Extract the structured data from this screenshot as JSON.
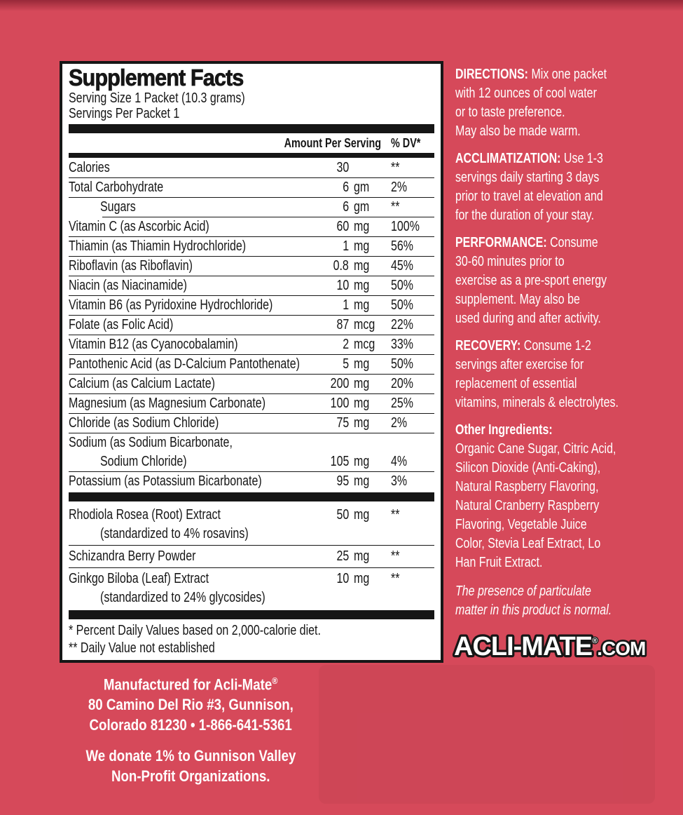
{
  "colors": {
    "background": "#d6495a",
    "label_background": "#ffffff",
    "label_ink": "#161616",
    "text_white": "#ffffff"
  },
  "panel": {
    "title": "Supplement Facts",
    "serving_size": "Serving Size 1 Packet (10.3 grams)",
    "servings_per": "Servings Per Packet 1",
    "col_amount": "Amount Per Serving",
    "col_dv": "% DV*",
    "rows": [
      {
        "name": "Calories",
        "amount": "30",
        "unit": "",
        "dv": "**"
      },
      {
        "name": "Total Carbohydrate",
        "amount": "6",
        "unit": "gm",
        "dv": "2%"
      },
      {
        "name": "Sugars",
        "indent": true,
        "amount": "6",
        "unit": "gm",
        "dv": "**"
      },
      {
        "name": "Vitamin C (as Ascorbic Acid)",
        "amount": "60",
        "unit": "mg",
        "dv": "100%"
      },
      {
        "name": "Thiamin (as Thiamin Hydrochloride)",
        "amount": "1",
        "unit": "mg",
        "dv": "56%"
      },
      {
        "name": "Riboflavin (as Riboflavin)",
        "amount": "0.8",
        "unit": "mg",
        "dv": "45%"
      },
      {
        "name": "Niacin (as Niacinamide)",
        "amount": "10",
        "unit": "mg",
        "dv": "50%"
      },
      {
        "name": "Vitamin B6 (as Pyridoxine Hydrochloride)",
        "amount": "1",
        "unit": "mg",
        "dv": "50%"
      },
      {
        "name": "Folate (as Folic Acid)",
        "amount": "87",
        "unit": "mcg",
        "dv": "22%"
      },
      {
        "name": "Vitamin B12 (as Cyanocobalamin)",
        "amount": "2",
        "unit": "mcg",
        "dv": "33%"
      },
      {
        "name": "Pantothenic Acid (as D-Calcium Pantothenate)",
        "amount": "5",
        "unit": "mg",
        "dv": "50%"
      },
      {
        "name": "Calcium (as Calcium Lactate)",
        "amount": "200",
        "unit": "mg",
        "dv": "20%"
      },
      {
        "name": "Magnesium (as Magnesium Carbonate)",
        "amount": "100",
        "unit": "mg",
        "dv": "25%"
      },
      {
        "name": "Chloride (as Sodium Chloride)",
        "amount": "75",
        "unit": "mg",
        "dv": "2%"
      },
      {
        "name": "Sodium (as Sodium Bicarbonate,",
        "name2": "Sodium Chloride)",
        "values_on_second_line": true,
        "amount": "105",
        "unit": "mg",
        "dv": "4%"
      },
      {
        "name": "Potassium (as Potassium Bicarbonate)",
        "amount": "95",
        "unit": "mg",
        "dv": "3%"
      }
    ],
    "herbal_rows": [
      {
        "name": "Rhodiola Rosea (Root) Extract",
        "name2": "(standardized to 4% rosavins)",
        "amount": "50",
        "unit": "mg",
        "dv": "**"
      },
      {
        "name": "Schizandra Berry Powder",
        "amount": "25",
        "unit": "mg",
        "dv": "**"
      },
      {
        "name": "Ginkgo Biloba (Leaf) Extract",
        "name2": "(standardized to 24% glycosides)",
        "amount": "10",
        "unit": "mg",
        "dv": "**"
      }
    ],
    "footnotes": [
      "* Percent Daily Values based on 2,000-calorie diet.",
      "** Daily Value not established"
    ]
  },
  "right_column": {
    "paragraphs": [
      {
        "key": "directions",
        "label": "DIRECTIONS:",
        "lines": [
          "Mix one packet",
          "with 12 ounces of cool water",
          "or to taste preference.",
          "May also be made warm."
        ]
      },
      {
        "key": "acclimatization",
        "label": "ACCLIMATIZATION:",
        "lines": [
          "Use 1-3",
          "servings daily starting 3 days",
          "prior to travel at elevation and",
          "for the duration of your stay."
        ]
      },
      {
        "key": "performance",
        "label": "PERFORMANCE:",
        "lines": [
          "Consume",
          "30-60 minutes prior to",
          "exercise as a pre-sport energy",
          "supplement. May also be",
          "used during and after activity."
        ]
      },
      {
        "key": "recovery",
        "label": "RECOVERY:",
        "lines": [
          "Consume 1-2",
          "servings after exercise for",
          "replacement of essential",
          "vitamins, minerals & electrolytes."
        ]
      },
      {
        "key": "other-ingredients",
        "label": "Other Ingredients:",
        "label_own_line": true,
        "lines": [
          "Organic Cane Sugar, Citric Acid,",
          "Silicon Dioxide (Anti-Caking),",
          "Natural Raspberry Flavoring,",
          "Natural Cranberry Raspberry",
          "Flavoring,  Vegetable Juice",
          "Color, Stevia Leaf Extract, Lo",
          "Han Fruit Extract."
        ]
      },
      {
        "key": "particulate-note",
        "italic": true,
        "lines": [
          "The presence of particulate",
          "matter in this product is normal."
        ]
      }
    ]
  },
  "logo": {
    "main": "ACLI-MATE",
    "reg": "®",
    "suffix": ".COM"
  },
  "manufacturer": {
    "lines": [
      "Manufactured for Acli-Mate",
      "80 Camino Del Rio #3, Gunnison,",
      "Colorado 81230 • 1-866-641-5361"
    ],
    "registered_mark": "®",
    "donation_lines": [
      "We donate 1% to Gunnison Valley",
      "Non-Profit Organizations."
    ]
  }
}
